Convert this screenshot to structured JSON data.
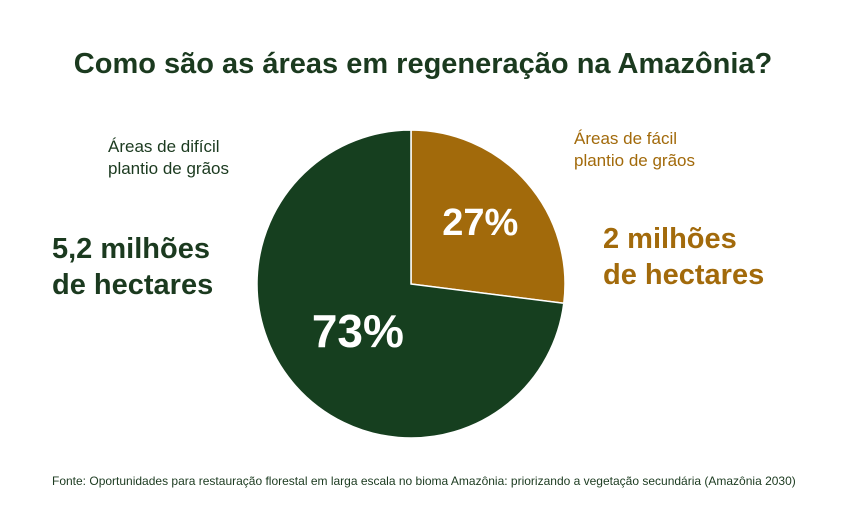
{
  "chart_data": {
    "type": "pie",
    "title": "Como são as áreas em regeneração na Amazônia?",
    "slices": [
      {
        "category_line1": "Áreas de fácil",
        "category_line2": "plantio de grãos",
        "value_line1": "2 milhões",
        "value_line2": "de hectares",
        "hectares_millions": 2,
        "percent": 27,
        "percent_label": "27%",
        "color": "#a26a0b"
      },
      {
        "category_line1": "Áreas de difícil",
        "category_line2": "plantio de grãos",
        "value_line1": "5,2 milhões",
        "value_line2": "de hectares",
        "hectares_millions": 5.2,
        "percent": 73,
        "percent_label": "73%",
        "color": "#163f1f"
      }
    ],
    "source": "Fonte: Oportunidades para restauração florestal em larga escala no bioma Amazônia: priorizando a vegetação secundária (Amazônia 2030)"
  }
}
